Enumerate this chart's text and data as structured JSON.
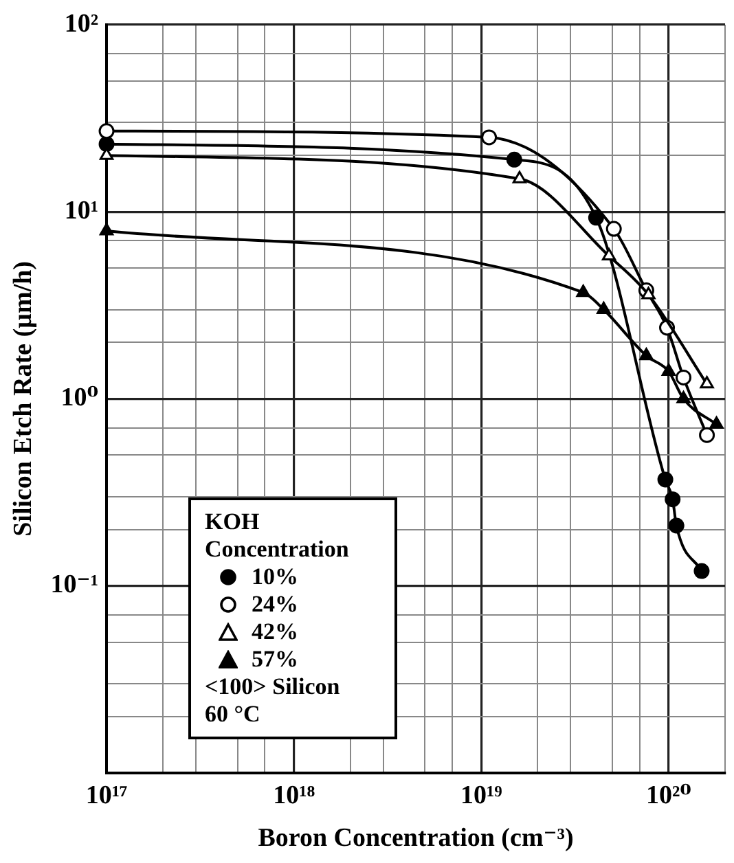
{
  "chart_data": {
    "type": "line",
    "xlabel": "Boron Concentration (cm⁻³)",
    "ylabel": "Silicon Etch Rate (µm/h)",
    "legend_title": "KOH Concentration",
    "log": "xy",
    "grid": true,
    "legend": "bottom left",
    "line_style": "solid",
    "xlim": [
      1e+17,
      2e+20
    ],
    "ylim": [
      0.01,
      100
    ],
    "xticks": [
      {
        "value": 1e+17,
        "label": "10¹⁷"
      },
      {
        "value": 2e+17,
        "label": null
      },
      {
        "value": 3e+17,
        "label": null
      },
      {
        "value": 5e+17,
        "label": null
      },
      {
        "value": 7e+17,
        "label": null
      },
      {
        "value": 1e+18,
        "label": "10¹⁸"
      },
      {
        "value": 2e+18,
        "label": null
      },
      {
        "value": 3e+18,
        "label": null
      },
      {
        "value": 5e+18,
        "label": null
      },
      {
        "value": 7e+18,
        "label": null
      },
      {
        "value": 1e+19,
        "label": "10¹⁹"
      },
      {
        "value": 2e+19,
        "label": null
      },
      {
        "value": 3e+19,
        "label": null
      },
      {
        "value": 5e+19,
        "label": null
      },
      {
        "value": 7e+19,
        "label": null
      },
      {
        "value": 1e+20,
        "label": "10²⁰"
      },
      {
        "value": 2e+20,
        "label": null
      }
    ],
    "yticks": [
      {
        "value": 0.01,
        "label": null
      },
      {
        "value": 0.02,
        "label": null
      },
      {
        "value": 0.03,
        "label": null
      },
      {
        "value": 0.05,
        "label": null
      },
      {
        "value": 0.07,
        "label": null
      },
      {
        "value": 0.1,
        "label": "10⁻¹"
      },
      {
        "value": 0.2,
        "label": null
      },
      {
        "value": 0.3,
        "label": null
      },
      {
        "value": 0.5,
        "label": null
      },
      {
        "value": 0.7,
        "label": null
      },
      {
        "value": 1,
        "label": "10⁰"
      },
      {
        "value": 2,
        "label": null
      },
      {
        "value": 3,
        "label": null
      },
      {
        "value": 5,
        "label": null
      },
      {
        "value": 7,
        "label": null
      },
      {
        "value": 10,
        "label": "10¹"
      },
      {
        "value": 20,
        "label": null
      },
      {
        "value": 30,
        "label": null
      },
      {
        "value": 50,
        "label": null
      },
      {
        "value": 70,
        "label": null
      },
      {
        "value": 100,
        "label": "10²"
      }
    ],
    "series": [
      {
        "name": "10%",
        "color": "#000000",
        "marker": "circle",
        "x": [
          1e+17,
          1.5e+19,
          4.1e+19,
          9.6e+19,
          1.05e+20,
          1.1e+20,
          1.5e+20
        ],
        "values": [
          23,
          19,
          9.3,
          0.37,
          0.29,
          0.21,
          0.12
        ]
      },
      {
        "name": "24%",
        "color": "#ffffff",
        "marker": "circle",
        "x": [
          1e+17,
          1.1e+19,
          5.1e+19,
          7.6e+19,
          9.8e+19,
          1.2e+20,
          1.6e+20
        ],
        "values": [
          27,
          25,
          8.1,
          3.8,
          2.4,
          1.3,
          0.64
        ]
      },
      {
        "name": "42%",
        "color": "#ffffff",
        "marker": "triangle",
        "x": [
          1e+17,
          1.6e+19,
          4.8e+19,
          7.8e+19,
          1.6e+20
        ],
        "values": [
          20,
          15,
          5.8,
          3.6,
          1.2
        ]
      },
      {
        "name": "57%",
        "color": "#000000",
        "marker": "triangle",
        "x": [
          1e+17,
          3.5e+19,
          4.5e+19,
          7.6e+19,
          1e+20,
          1.2e+20,
          1.8e+20
        ],
        "values": [
          7.9,
          3.7,
          3.0,
          1.7,
          1.4,
          1.0,
          0.73
        ]
      }
    ],
    "annotations": [
      "<100> Silicon",
      "60 °C"
    ]
  }
}
